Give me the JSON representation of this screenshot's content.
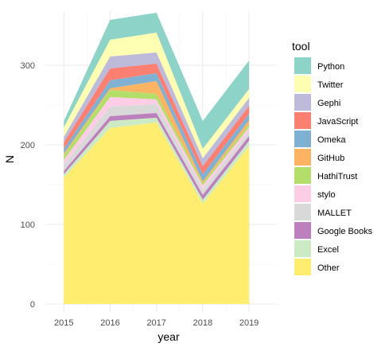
{
  "chart_data": {
    "type": "area",
    "stacked": true,
    "xlabel": "year",
    "ylabel": "N",
    "x": [
      2015,
      2016,
      2017,
      2018,
      2019
    ],
    "xlim": [
      2014.6,
      2019.6
    ],
    "ylim": [
      -10,
      368
    ],
    "yticks": [
      0,
      100,
      200,
      300
    ],
    "grid": true,
    "legend": {
      "title": "tool",
      "position": "right"
    },
    "series": [
      {
        "name": "Other",
        "color": "#FFED6F",
        "values": [
          159,
          221,
          228,
          126,
          198
        ]
      },
      {
        "name": "Excel",
        "color": "#CCEBC5",
        "values": [
          4,
          9,
          6,
          5,
          7
        ]
      },
      {
        "name": "Google Books",
        "color": "#BC80BD",
        "values": [
          4,
          6,
          6,
          6,
          6
        ]
      },
      {
        "name": "MALLET",
        "color": "#D9D9D9",
        "values": [
          8,
          12,
          11,
          7,
          6
        ]
      },
      {
        "name": "stylo",
        "color": "#FCCDE5",
        "values": [
          6,
          12,
          6,
          5,
          5
        ]
      },
      {
        "name": "HathiTrust",
        "color": "#B3DE69",
        "values": [
          6,
          9,
          7,
          3,
          4
        ]
      },
      {
        "name": "GitHub",
        "color": "#FDB462",
        "values": [
          2,
          2,
          16,
          2,
          5
        ]
      },
      {
        "name": "Omeka",
        "color": "#80B1D3",
        "values": [
          6,
          10,
          10,
          9,
          8
        ]
      },
      {
        "name": "JavaScript",
        "color": "#FB8072",
        "values": [
          8,
          15,
          12,
          10,
          10
        ]
      },
      {
        "name": "Gephi",
        "color": "#BEBADA",
        "values": [
          7,
          15,
          14,
          10,
          10
        ]
      },
      {
        "name": "Twitter",
        "color": "#FFFFB3",
        "values": [
          12,
          21,
          25,
          12,
          11
        ]
      },
      {
        "name": "Python",
        "color": "#8DD3C7",
        "values": [
          8,
          25,
          25,
          35,
          36
        ]
      }
    ]
  }
}
